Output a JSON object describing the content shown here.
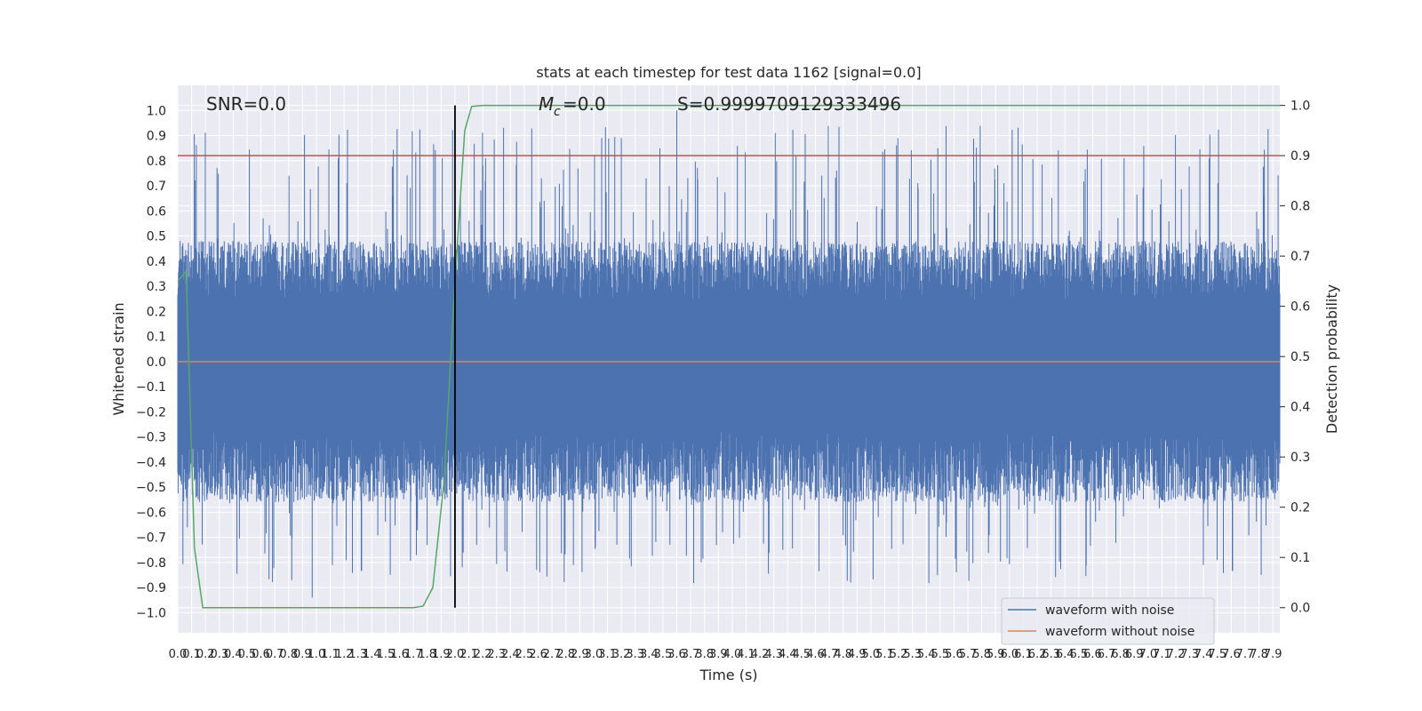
{
  "chart_data": {
    "type": "line",
    "title": "stats at each timestep for test data 1162 [signal=0.0]",
    "xlabel": "Time (s)",
    "ylabel_left": "Whitened strain",
    "ylabel_right": "Detection probability",
    "xlim": [
      0.0,
      7.95
    ],
    "ylim_left": [
      -1.08,
      1.1
    ],
    "ylim_right": [
      -0.05,
      1.04
    ],
    "grid": true,
    "legend_position": "lower-right",
    "x_ticks": [
      "0.0",
      "0.1",
      "0.2",
      "0.3",
      "0.4",
      "0.5",
      "0.6",
      "0.7",
      "0.8",
      "0.9",
      "1.0",
      "1.1",
      "1.2",
      "1.3",
      "1.4",
      "1.5",
      "1.6",
      "1.7",
      "1.8",
      "1.9",
      "2.0",
      "2.1",
      "2.2",
      "2.3",
      "2.4",
      "2.5",
      "2.6",
      "2.7",
      "2.8",
      "2.9",
      "3.0",
      "3.1",
      "3.2",
      "3.3",
      "3.4",
      "3.5",
      "3.6",
      "3.7",
      "3.8",
      "3.9",
      "4.0",
      "4.1",
      "4.2",
      "4.3",
      "4.4",
      "4.5",
      "4.6",
      "4.7",
      "4.8",
      "4.9",
      "5.0",
      "5.1",
      "5.2",
      "5.3",
      "5.4",
      "5.5",
      "5.6",
      "5.7",
      "5.8",
      "5.9",
      "6.0",
      "6.1",
      "6.2",
      "6.3",
      "6.4",
      "6.5",
      "6.6",
      "6.7",
      "6.8",
      "6.9",
      "7.0",
      "7.1",
      "7.2",
      "7.3",
      "7.4",
      "7.5",
      "7.6",
      "7.7",
      "7.8",
      "7.9"
    ],
    "y_ticks_left": [
      "1.0",
      "0.9",
      "0.8",
      "0.7",
      "0.6",
      "0.5",
      "0.4",
      "0.3",
      "0.2",
      "0.1",
      "0.0",
      "−0.1",
      "−0.2",
      "−0.3",
      "−0.4",
      "−0.5",
      "−0.6",
      "−0.7",
      "−0.8",
      "−0.9",
      "−1.0"
    ],
    "y_ticks_right": [
      "1.0",
      "0.9",
      "0.8",
      "0.7",
      "0.6",
      "0.5",
      "0.4",
      "0.3",
      "0.2",
      "0.1",
      "0.0"
    ],
    "annotations": {
      "snr": "SNR=0.0",
      "mc": "=0.0",
      "mc_symbol": "M",
      "mc_subscript": "c",
      "s": "S=0.9999709129333496"
    },
    "series": [
      {
        "name": "waveform with noise",
        "color": "#4c72b0",
        "axis": "left",
        "kind": "dense-noise",
        "peak_positive": 1.0,
        "peak_negative": -0.94,
        "typical_envelope": 0.4
      },
      {
        "name": "waveform without noise",
        "color": "#dd8452",
        "axis": "left",
        "x": [
          0.0,
          7.95
        ],
        "y": [
          0.0,
          0.0
        ]
      },
      {
        "color": "#55a868",
        "axis": "right",
        "x": [
          0.0,
          0.06,
          0.12,
          0.18,
          1.7,
          1.77,
          1.84,
          1.92,
          2.0,
          2.07,
          2.12,
          2.2,
          7.95
        ],
        "y": [
          0.65,
          0.67,
          0.12,
          0.0,
          0.0,
          0.003,
          0.04,
          0.25,
          0.65,
          0.95,
          0.998,
          1.0,
          1.0
        ]
      }
    ],
    "threshold": {
      "color": "#c44e52",
      "axis": "right",
      "value": 0.9
    },
    "marker_line": {
      "color": "#000000",
      "x": 2.0,
      "from": 0.0,
      "to": 1.0
    }
  }
}
